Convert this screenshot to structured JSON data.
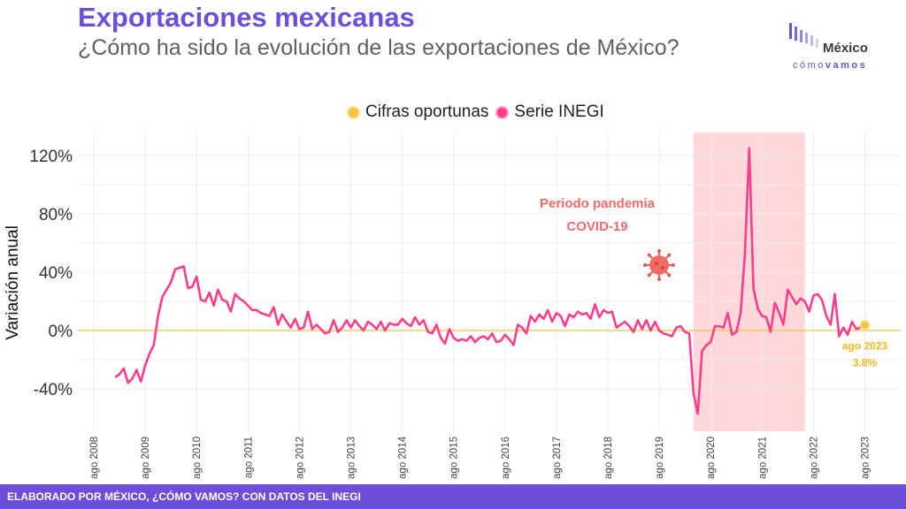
{
  "header": {
    "title": "Exportaciones mexicanas",
    "subtitle": "¿Cómo ha sido la evolución de las exportaciones de México?"
  },
  "logo": {
    "word": "México",
    "sub_prefix": "cómo",
    "sub_bold": "vamos"
  },
  "footer": {
    "text": "ELABORADO POR MÉXICO, ¿CÓMO VAMOS? CON DATOS DEL INEGI"
  },
  "colors": {
    "brand": "#6b4fd8",
    "series": "#ff3d8b",
    "oportunas": "#f5c342",
    "pandemic_band": "#ffd9d9",
    "pandemic_text": "#f26a6a"
  },
  "chart_data": {
    "type": "line",
    "ylabel": "Variación anual",
    "xlabel": "",
    "ylim": [
      -55,
      130
    ],
    "yticks": [
      -40,
      0,
      40,
      80,
      120
    ],
    "ytick_labels": [
      "-40%",
      "0%",
      "40%",
      "80%",
      "120%"
    ],
    "xticks": [
      "2008-08",
      "2009-08",
      "2010-08",
      "2011-08",
      "2012-08",
      "2013-08",
      "2014-08",
      "2015-08",
      "2016-08",
      "2017-08",
      "2018-08",
      "2019-08",
      "2020-08",
      "2021-08",
      "2022-08",
      "2023-08"
    ],
    "xtick_labels": [
      "ago 2008",
      "ago 2009",
      "ago 2010",
      "ago 2011",
      "ago 2012",
      "ago 2013",
      "ago 2014",
      "ago 2015",
      "ago 2016",
      "ago 2017",
      "ago 2018",
      "ago 2019",
      "ago 2020",
      "ago 2021",
      "ago 2022",
      "ago 2023"
    ],
    "legend": {
      "position": "top",
      "entries": [
        "Cifras oportunas",
        "Serie INEGI"
      ]
    },
    "grid": true,
    "annotation": {
      "line1": "Periodo pandemia",
      "line2": "COVID-19",
      "shade_start": "2020-04",
      "shade_end": "2022-06"
    },
    "series": [
      {
        "name": "Serie INEGI",
        "start": "2009-01",
        "values": [
          -32,
          -30,
          -26,
          -36,
          -33,
          -27,
          -35,
          -24,
          -16,
          -10,
          10,
          23,
          28,
          33,
          42,
          43,
          44,
          29,
          30,
          37,
          21,
          20,
          26,
          17,
          28,
          21,
          20,
          13,
          25,
          22,
          20,
          17,
          14,
          14,
          12,
          11,
          10,
          16,
          4,
          11,
          6,
          2,
          8,
          1,
          2,
          13,
          1,
          4,
          1,
          -2,
          -1,
          7,
          -1,
          2,
          7,
          2,
          7,
          3,
          0,
          6,
          4,
          1,
          6,
          0,
          5,
          4,
          4,
          8,
          5,
          3,
          9,
          4,
          7,
          -1,
          -2,
          4,
          -5,
          -9,
          1,
          -5,
          -7,
          -6,
          -7,
          -4,
          -8,
          -5,
          -4,
          -6,
          -2,
          -8,
          -7,
          -3,
          -6,
          -10,
          4,
          2,
          -2,
          10,
          6,
          11,
          8,
          14,
          6,
          12,
          10,
          3,
          11,
          9,
          13,
          11,
          12,
          8,
          18,
          9,
          14,
          12,
          13,
          2,
          4,
          6,
          3,
          -1,
          7,
          1,
          7,
          0,
          6,
          0,
          -2,
          -3,
          -4,
          2,
          3,
          -1,
          -2,
          -43,
          -57,
          -14,
          -10,
          -8,
          3,
          3,
          2,
          12,
          -3,
          -1,
          12,
          52,
          125,
          29,
          15,
          10,
          9,
          -1,
          19,
          12,
          4,
          28,
          23,
          18,
          22,
          20,
          13,
          24,
          25,
          21,
          10,
          4,
          25,
          -4,
          2,
          -3,
          6,
          1,
          2
        ]
      },
      {
        "name": "Cifras oportunas",
        "points": [
          {
            "x": "2023-08",
            "y": 3.8
          }
        ]
      }
    ],
    "point_label": {
      "line1": "ago 2023",
      "line2": "3.8%"
    }
  }
}
